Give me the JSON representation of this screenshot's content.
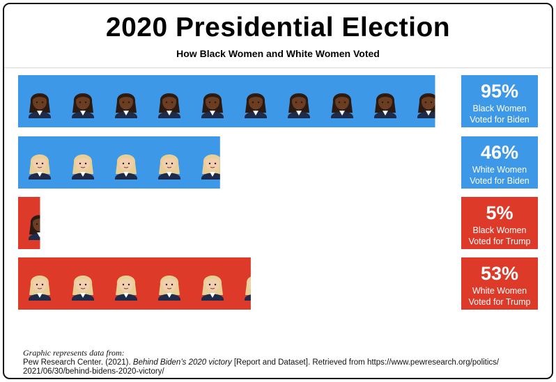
{
  "header": {
    "title": "2020 Presidential Election",
    "subtitle": "How Black Women and White Women Voted"
  },
  "colors": {
    "biden": "#3d98e8",
    "trump": "#dd3a2a",
    "black_skin": "#6b3d22",
    "black_hair": "#2a1a12",
    "white_skin": "#f1cfae",
    "white_hair": "#e8cf95",
    "jacket": "#1f2b4a"
  },
  "icons": {
    "black_woman": "woman-dark-skin-icon",
    "white_woman": "woman-light-skin-blonde-icon"
  },
  "chart_data": {
    "type": "bar",
    "orientation": "horizontal",
    "unit": "%",
    "xlim": [
      0,
      100
    ],
    "categories": [
      "Black Women Voted for Biden",
      "White Women Voted for Biden",
      "Black Women Voted for Trump",
      "White Women Voted for Trump"
    ],
    "values": [
      95,
      46,
      5,
      53
    ],
    "bars": [
      {
        "value": 95,
        "pct_label": "95%",
        "line1": "Black Women",
        "line2": "Voted for Biden",
        "group": "black",
        "candidate": "biden"
      },
      {
        "value": 46,
        "pct_label": "46%",
        "line1": "White Women",
        "line2": "Voted for Biden",
        "group": "white",
        "candidate": "biden"
      },
      {
        "value": 5,
        "pct_label": "5%",
        "line1": "Black Women",
        "line2": "Voted for Trump",
        "group": "black",
        "candidate": "trump"
      },
      {
        "value": 53,
        "pct_label": "53%",
        "line1": "White Women",
        "line2": "Voted for Trump",
        "group": "white",
        "candidate": "trump"
      }
    ],
    "icon_value": 10,
    "grid": false,
    "legend": "none"
  },
  "source": {
    "intro": "Graphic represents data from:",
    "author": "Pew Research Center. (2021).",
    "work": "Behind Biden’s 2020 victory",
    "details": "[Report and Dataset]. Retrieved from https://www.pewresearch.org/politics/",
    "url_cont": "2021/06/30/behind-bidens-2020-victory/"
  }
}
